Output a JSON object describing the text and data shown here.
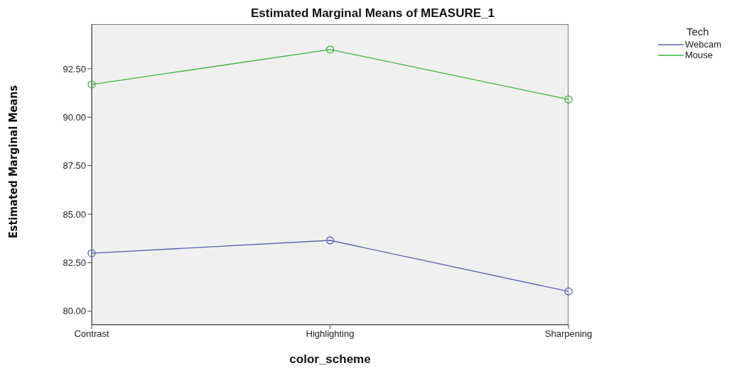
{
  "chart_data": {
    "type": "line",
    "title": "Estimated Marginal Means of MEASURE_1",
    "xlabel": "color_scheme",
    "ylabel": "Estimated Marginal Means",
    "legend_title": "Tech",
    "categories": [
      "Contrast",
      "Highlighting",
      "Sharpening"
    ],
    "series": [
      {
        "name": "Webcam",
        "color": "#5b63b0",
        "values": [
          82.99,
          83.65,
          81.02
        ]
      },
      {
        "name": "Mouse",
        "color": "#3cb43c",
        "values": [
          91.69,
          93.49,
          90.92
        ]
      }
    ],
    "ylim": [
      79.3,
      94.8
    ],
    "yticks": [
      {
        "value": 80,
        "label": "80.00"
      },
      {
        "value": 82.5,
        "label": "82.50"
      },
      {
        "value": 85,
        "label": "85.00"
      },
      {
        "value": 87.5,
        "label": "87.50"
      },
      {
        "value": 90,
        "label": "90.00"
      },
      {
        "value": 92.5,
        "label": "92.50"
      }
    ],
    "grid": false,
    "legend": "top right",
    "marker": "circle",
    "line_style": "solid"
  }
}
